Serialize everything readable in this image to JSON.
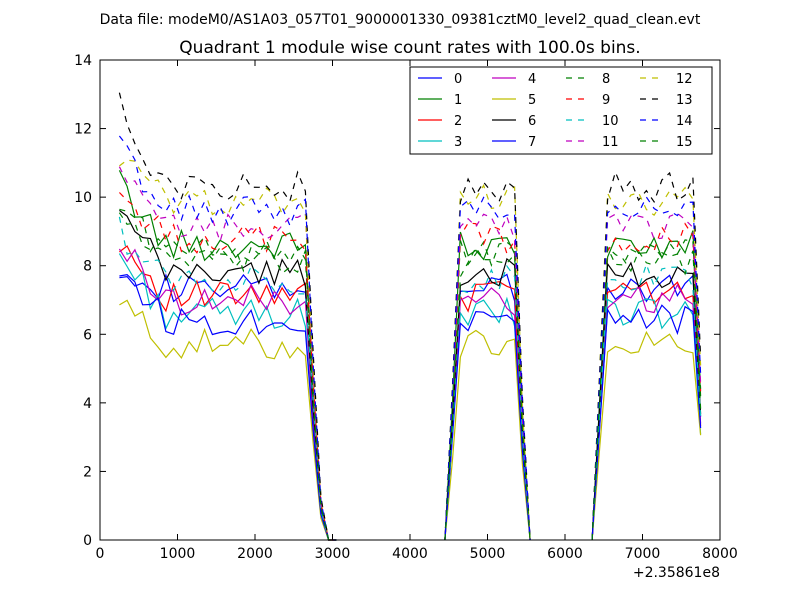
{
  "header": {
    "data_file": "Data file: modeM0/AS1A03_057T01_9000001330_09381cztM0_level2_quad_clean.evt"
  },
  "chart_data": {
    "type": "line",
    "title": "Quadrant 1 module wise count rates with 100.0s bins.",
    "xlabel": "",
    "ylabel": "",
    "x_offset_label": "+2.35861e8",
    "xlim": [
      0,
      8000
    ],
    "ylim": [
      0,
      14
    ],
    "xticks": [
      0,
      1000,
      2000,
      3000,
      4000,
      5000,
      6000,
      7000,
      8000
    ],
    "yticks": [
      0,
      2,
      4,
      6,
      8,
      10,
      12,
      14
    ],
    "legend_position": "top-right",
    "segments": [
      {
        "x": [
          250,
          350,
          450,
          550,
          650,
          750,
          850,
          950,
          1050,
          1150,
          1250,
          1350,
          1450,
          1550,
          1650,
          1750,
          1850,
          1950,
          2050,
          2150,
          2250,
          2350,
          2450,
          2550,
          2650,
          2750,
          2850,
          2950,
          3050
        ],
        "drop": [
          1,
          1,
          1,
          1,
          1,
          1,
          1,
          1,
          1,
          1,
          1,
          1,
          1,
          1,
          1,
          1,
          1,
          1,
          1,
          1,
          1,
          1,
          1,
          1,
          1,
          0.52,
          0.12,
          0,
          0
        ]
      },
      {
        "x": [
          4450,
          4550,
          4650,
          4750,
          4850,
          4950,
          5050,
          5150,
          5250,
          5350,
          5450,
          5550
        ],
        "drop": [
          0,
          0.45,
          1,
          1,
          1,
          1,
          1,
          1,
          1,
          1,
          0.4,
          0
        ]
      },
      {
        "x": [
          6350,
          6550,
          6650,
          6750,
          6850,
          6950,
          7050,
          7150,
          7250,
          7350,
          7450,
          7550,
          7650,
          7750
        ],
        "drop": [
          0,
          1,
          1,
          1,
          1,
          1,
          1,
          1,
          1,
          1,
          1,
          1,
          1,
          0.5
        ]
      }
    ],
    "series": [
      {
        "name": "0",
        "color": "#0000ff",
        "dash": "solid",
        "level": 7.3,
        "start": 8.1
      },
      {
        "name": "1",
        "color": "#008000",
        "dash": "solid",
        "level": 8.6,
        "start": 10.4
      },
      {
        "name": "2",
        "color": "#ff0000",
        "dash": "solid",
        "level": 7.1,
        "start": 8.8
      },
      {
        "name": "3",
        "color": "#00bfbf",
        "dash": "solid",
        "level": 6.6,
        "start": 8.3
      },
      {
        "name": "4",
        "color": "#bf00bf",
        "dash": "solid",
        "level": 7.0,
        "start": 8.6
      },
      {
        "name": "5",
        "color": "#bfbf00",
        "dash": "solid",
        "level": 5.7,
        "start": 6.9
      },
      {
        "name": "6",
        "color": "#000000",
        "dash": "solid",
        "level": 7.8,
        "start": 9.5
      },
      {
        "name": "7",
        "color": "#0000ff",
        "dash": "solid",
        "level": 6.4,
        "start": 8.0
      },
      {
        "name": "8",
        "color": "#008000",
        "dash": "dashed",
        "level": 8.4,
        "start": 9.8
      },
      {
        "name": "9",
        "color": "#ff0000",
        "dash": "dashed",
        "level": 8.8,
        "start": 10.1
      },
      {
        "name": "10",
        "color": "#00bfbf",
        "dash": "dashed",
        "level": 7.6,
        "start": 9.0
      },
      {
        "name": "11",
        "color": "#bf00bf",
        "dash": "dashed",
        "level": 9.1,
        "start": 10.6
      },
      {
        "name": "12",
        "color": "#bfbf00",
        "dash": "dashed",
        "level": 9.9,
        "start": 11.2
      },
      {
        "name": "13",
        "color": "#000000",
        "dash": "dashed",
        "level": 10.3,
        "start": 12.6
      },
      {
        "name": "14",
        "color": "#0000ff",
        "dash": "dashed",
        "level": 9.6,
        "start": 11.5
      },
      {
        "name": "15",
        "color": "#008000",
        "dash": "dashed",
        "level": 8.1,
        "start": 9.6
      }
    ]
  }
}
